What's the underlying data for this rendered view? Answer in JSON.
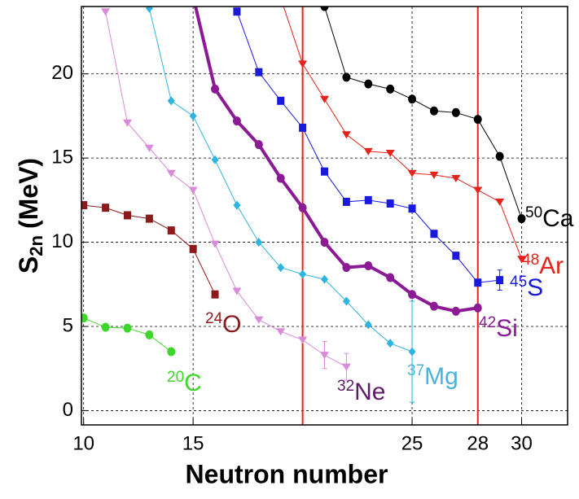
{
  "chart_data": {
    "type": "line",
    "xlabel": "Neutron number",
    "ylabel": {
      "main": "S",
      "sub": "2n",
      "unit": "(MeV)"
    },
    "xlim": [
      9.9,
      32.1
    ],
    "ylim": [
      -0.85,
      24
    ],
    "xticks": [
      10,
      15,
      25,
      28,
      30
    ],
    "yticks": [
      0,
      5,
      10,
      15,
      20
    ],
    "grid": true,
    "vlines": [
      20,
      28
    ],
    "vline_color": "#e3231c",
    "series": [
      {
        "name": "Ca",
        "mass": "50",
        "color": "#000000",
        "label_color": "#000000",
        "marker": "circle",
        "line_width": 1,
        "x": [
          21,
          22,
          23,
          24,
          25,
          26,
          27,
          28,
          29,
          30
        ],
        "values": [
          24.0,
          19.8,
          19.4,
          19.1,
          18.5,
          17.8,
          17.7,
          17.3,
          15.1,
          11.4
        ]
      },
      {
        "name": "Ar",
        "mass": "48",
        "color": "#e3231c",
        "label_color": "#e3231c",
        "marker": "triangle",
        "line_width": 1,
        "x": [
          19,
          20,
          21,
          22,
          23,
          24,
          25,
          26,
          27,
          28,
          29,
          30
        ],
        "values": [
          24.5,
          20.6,
          18.5,
          16.4,
          15.4,
          15.3,
          14.1,
          14.0,
          13.8,
          13.1,
          12.4,
          9.0
        ]
      },
      {
        "name": "S",
        "mass": "45",
        "color": "#1a1adf",
        "label_color": "#1a1adf",
        "marker": "square",
        "line_width": 1,
        "x": [
          17,
          18,
          19,
          20,
          21,
          22,
          23,
          24,
          25,
          26,
          27,
          28,
          29
        ],
        "values": [
          23.7,
          20.1,
          18.4,
          16.8,
          14.2,
          12.4,
          12.5,
          12.3,
          12.0,
          10.5,
          9.2,
          7.6,
          7.75
        ],
        "errors": [
          null,
          null,
          null,
          null,
          null,
          null,
          null,
          null,
          null,
          null,
          null,
          null,
          0.6
        ]
      },
      {
        "name": "Si",
        "mass": "42",
        "color": "#8b1a94",
        "label_color": "#8b1a94",
        "marker": "circle",
        "line_width": 4,
        "x": [
          15,
          16,
          17,
          18,
          19,
          20,
          21,
          22,
          23,
          24,
          25,
          26,
          27,
          28
        ],
        "values": [
          24.6,
          19.1,
          17.2,
          15.8,
          13.8,
          12.05,
          10.0,
          8.5,
          8.6,
          7.9,
          6.9,
          6.2,
          5.9,
          6.1
        ]
      },
      {
        "name": "Mg",
        "mass": "37",
        "color": "#2fb4e0",
        "label_color": "#4ab3dc",
        "marker": "diamond",
        "line_width": 1,
        "x": [
          13,
          14,
          15,
          16,
          17,
          18,
          19,
          20,
          21,
          22,
          23,
          24,
          25
        ],
        "values": [
          23.9,
          18.4,
          17.5,
          14.9,
          12.2,
          10.0,
          8.5,
          8.1,
          7.8,
          6.5,
          5.1,
          4.0,
          3.5
        ],
        "errors": [
          null,
          null,
          null,
          null,
          null,
          null,
          null,
          null,
          null,
          null,
          null,
          null,
          3.0
        ]
      },
      {
        "name": "Ne",
        "mass": "32",
        "color": "#d98ad8",
        "label_color": "#5e1a66",
        "marker": "triangle",
        "line_width": 1,
        "x": [
          11,
          12,
          13,
          14,
          15,
          16,
          17,
          18,
          19,
          20,
          21,
          22
        ],
        "values": [
          23.7,
          17.1,
          15.6,
          14.1,
          13.1,
          9.9,
          7.1,
          5.4,
          4.7,
          4.2,
          3.3,
          2.6
        ],
        "errors": [
          null,
          null,
          null,
          null,
          null,
          null,
          null,
          null,
          null,
          null,
          0.8,
          0.8
        ]
      },
      {
        "name": "O",
        "mass": "24",
        "color": "#8b1a1a",
        "label_color": "#8b1a1a",
        "marker": "square",
        "line_width": 1,
        "x": [
          10,
          11,
          12,
          13,
          14,
          15,
          16
        ],
        "values": [
          12.2,
          12.05,
          11.6,
          11.4,
          10.7,
          9.6,
          6.9
        ]
      },
      {
        "name": "C",
        "mass": "20",
        "color": "#3fd62a",
        "label_color": "#3fd62a",
        "marker": "circle",
        "line_width": 1,
        "x": [
          10,
          11,
          12,
          13,
          14
        ],
        "values": [
          5.5,
          4.95,
          4.9,
          4.5,
          3.5
        ]
      }
    ]
  }
}
